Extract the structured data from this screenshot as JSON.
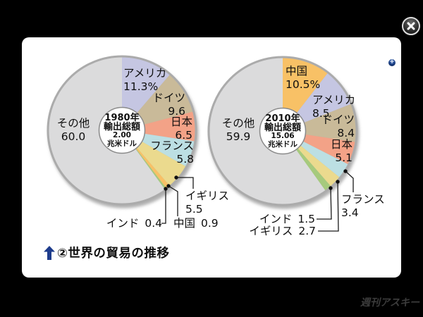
{
  "controls": {
    "close": "close",
    "zoom_in": "zoom-in"
  },
  "caption": {
    "text": "②世界の貿易の推移"
  },
  "watermark": "週刊アスキー",
  "colors": {
    "arrow_blue": "#1e3c8c",
    "rim_gray": "#ababab",
    "panel": "#ffffff",
    "background": "#000000"
  },
  "chart_data": [
    {
      "type": "pie",
      "title": "1980年輸出総額 2.00兆米ドル",
      "center": [
        "1980年",
        "輸出総額",
        "2.00",
        "兆米ドル"
      ],
      "unit": "%",
      "start_angle": "12時位置から時計回り",
      "slices": [
        {
          "name": "アメリカ",
          "value": 11.3,
          "label": "11.3%",
          "color": "#c5c6e2"
        },
        {
          "name": "ドイツ",
          "value": 9.6,
          "label": "9.6",
          "color": "#c9ba99"
        },
        {
          "name": "日本",
          "value": 6.5,
          "label": "6.5",
          "color": "#f3a287"
        },
        {
          "name": "フランス",
          "value": 5.8,
          "label": "5.8",
          "color": "#bcdfe3"
        },
        {
          "name": "イギリス",
          "value": 5.5,
          "label": "5.5",
          "color": "#ebda8e"
        },
        {
          "name": "中国",
          "value": 0.9,
          "label": "0.9",
          "color": "#f8c166"
        },
        {
          "name": "インド",
          "value": 0.4,
          "label": "0.4",
          "color": "#a6ca7d"
        },
        {
          "name": "その他",
          "value": 60.0,
          "label": "60.0",
          "color": "#dbdbdc"
        }
      ]
    },
    {
      "type": "pie",
      "title": "2010年輸出総額 15.06兆米ドル",
      "center": [
        "2010年",
        "輸出総額",
        "15.06",
        "兆米ドル"
      ],
      "unit": "%",
      "start_angle": "12時位置から時計回り",
      "slices": [
        {
          "name": "中国",
          "value": 10.5,
          "label": "10.5%",
          "color": "#f8c166"
        },
        {
          "name": "アメリカ",
          "value": 8.5,
          "label": "8.5",
          "color": "#c5c6e2"
        },
        {
          "name": "ドイツ",
          "value": 8.4,
          "label": "8.4",
          "color": "#c9ba99"
        },
        {
          "name": "日本",
          "value": 5.1,
          "label": "5.1",
          "color": "#f3a287"
        },
        {
          "name": "フランス",
          "value": 3.4,
          "label": "3.4",
          "color": "#bcdfe3"
        },
        {
          "name": "イギリス",
          "value": 2.7,
          "label": "2.7",
          "color": "#ebda8e"
        },
        {
          "name": "インド",
          "value": 1.5,
          "label": "1.5",
          "color": "#a6ca7d"
        },
        {
          "name": "その他",
          "value": 59.9,
          "label": "59.9",
          "color": "#dbdbdc"
        }
      ]
    }
  ]
}
